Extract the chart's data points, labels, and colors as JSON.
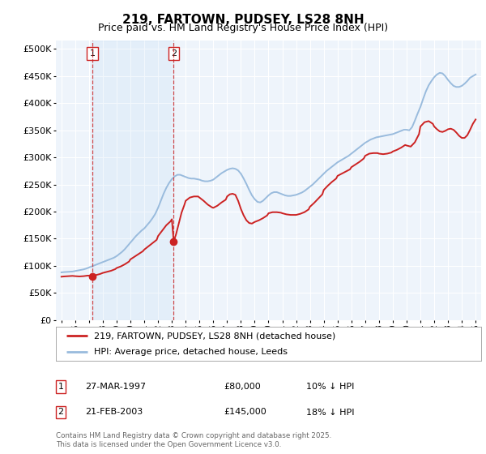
{
  "title": "219, FARTOWN, PUDSEY, LS28 8NH",
  "subtitle": "Price paid vs. HM Land Registry's House Price Index (HPI)",
  "ylabel_values": [
    0,
    50000,
    100000,
    150000,
    200000,
    250000,
    300000,
    350000,
    400000,
    450000,
    500000
  ],
  "xlim_start": 1994.6,
  "xlim_end": 2025.4,
  "ylim": [
    0,
    515000
  ],
  "bg_color": "#ffffff",
  "plot_bg": "#eef4fb",
  "grid_color": "#ffffff",
  "hpi_color": "#99bbdd",
  "price_color": "#cc2222",
  "legend_entry1": "219, FARTOWN, PUDSEY, LS28 8NH (detached house)",
  "legend_entry2": "HPI: Average price, detached house, Leeds",
  "annotation1_label": "1",
  "annotation1_date": "27-MAR-1997",
  "annotation1_price": "£80,000",
  "annotation1_hpi": "10% ↓ HPI",
  "annotation1_year": 1997.23,
  "annotation1_value": 80000,
  "annotation2_label": "2",
  "annotation2_date": "21-FEB-2003",
  "annotation2_price": "£145,000",
  "annotation2_hpi": "18% ↓ HPI",
  "annotation2_year": 2003.13,
  "annotation2_value": 145000,
  "footer": "Contains HM Land Registry data © Crown copyright and database right 2025.\nThis data is licensed under the Open Government Licence v3.0.",
  "hpi_data": [
    [
      1995.0,
      88000
    ],
    [
      1995.2,
      88500
    ],
    [
      1995.4,
      88800
    ],
    [
      1995.6,
      89000
    ],
    [
      1995.8,
      89500
    ],
    [
      1996.0,
      90500
    ],
    [
      1996.2,
      91500
    ],
    [
      1996.4,
      92500
    ],
    [
      1996.6,
      93500
    ],
    [
      1996.8,
      95000
    ],
    [
      1997.0,
      97000
    ],
    [
      1997.2,
      99000
    ],
    [
      1997.4,
      101000
    ],
    [
      1997.6,
      103000
    ],
    [
      1997.8,
      105000
    ],
    [
      1998.0,
      107000
    ],
    [
      1998.2,
      109000
    ],
    [
      1998.4,
      111000
    ],
    [
      1998.6,
      113000
    ],
    [
      1998.8,
      115000
    ],
    [
      1999.0,
      118000
    ],
    [
      1999.2,
      122000
    ],
    [
      1999.4,
      126000
    ],
    [
      1999.6,
      131000
    ],
    [
      1999.8,
      137000
    ],
    [
      2000.0,
      143000
    ],
    [
      2000.2,
      149000
    ],
    [
      2000.4,
      155000
    ],
    [
      2000.6,
      160000
    ],
    [
      2000.8,
      165000
    ],
    [
      2001.0,
      169000
    ],
    [
      2001.2,
      175000
    ],
    [
      2001.4,
      181000
    ],
    [
      2001.6,
      188000
    ],
    [
      2001.8,
      196000
    ],
    [
      2002.0,
      207000
    ],
    [
      2002.2,
      220000
    ],
    [
      2002.4,
      233000
    ],
    [
      2002.6,
      244000
    ],
    [
      2002.8,
      253000
    ],
    [
      2003.0,
      260000
    ],
    [
      2003.2,
      265000
    ],
    [
      2003.4,
      268000
    ],
    [
      2003.6,
      268000
    ],
    [
      2003.8,
      266000
    ],
    [
      2004.0,
      264000
    ],
    [
      2004.2,
      262000
    ],
    [
      2004.4,
      261000
    ],
    [
      2004.6,
      261000
    ],
    [
      2004.8,
      260000
    ],
    [
      2005.0,
      259000
    ],
    [
      2005.2,
      257000
    ],
    [
      2005.4,
      256000
    ],
    [
      2005.6,
      256000
    ],
    [
      2005.8,
      257000
    ],
    [
      2006.0,
      259000
    ],
    [
      2006.2,
      263000
    ],
    [
      2006.4,
      267000
    ],
    [
      2006.6,
      271000
    ],
    [
      2006.8,
      274000
    ],
    [
      2007.0,
      277000
    ],
    [
      2007.2,
      279000
    ],
    [
      2007.4,
      280000
    ],
    [
      2007.6,
      279000
    ],
    [
      2007.8,
      276000
    ],
    [
      2008.0,
      270000
    ],
    [
      2008.2,
      261000
    ],
    [
      2008.4,
      251000
    ],
    [
      2008.6,
      240000
    ],
    [
      2008.8,
      230000
    ],
    [
      2009.0,
      223000
    ],
    [
      2009.2,
      218000
    ],
    [
      2009.4,
      217000
    ],
    [
      2009.6,
      220000
    ],
    [
      2009.8,
      225000
    ],
    [
      2010.0,
      230000
    ],
    [
      2010.2,
      234000
    ],
    [
      2010.4,
      236000
    ],
    [
      2010.6,
      236000
    ],
    [
      2010.8,
      234000
    ],
    [
      2011.0,
      232000
    ],
    [
      2011.2,
      230000
    ],
    [
      2011.4,
      229000
    ],
    [
      2011.6,
      229000
    ],
    [
      2011.8,
      230000
    ],
    [
      2012.0,
      231000
    ],
    [
      2012.2,
      233000
    ],
    [
      2012.4,
      235000
    ],
    [
      2012.6,
      238000
    ],
    [
      2012.8,
      242000
    ],
    [
      2013.0,
      246000
    ],
    [
      2013.2,
      250000
    ],
    [
      2013.4,
      255000
    ],
    [
      2013.6,
      260000
    ],
    [
      2013.8,
      265000
    ],
    [
      2014.0,
      270000
    ],
    [
      2014.2,
      275000
    ],
    [
      2014.4,
      279000
    ],
    [
      2014.6,
      283000
    ],
    [
      2014.8,
      287000
    ],
    [
      2015.0,
      291000
    ],
    [
      2015.2,
      294000
    ],
    [
      2015.4,
      297000
    ],
    [
      2015.6,
      300000
    ],
    [
      2015.8,
      303000
    ],
    [
      2016.0,
      307000
    ],
    [
      2016.2,
      311000
    ],
    [
      2016.4,
      315000
    ],
    [
      2016.6,
      319000
    ],
    [
      2016.8,
      323000
    ],
    [
      2017.0,
      327000
    ],
    [
      2017.2,
      330000
    ],
    [
      2017.4,
      333000
    ],
    [
      2017.6,
      335000
    ],
    [
      2017.8,
      337000
    ],
    [
      2018.0,
      338000
    ],
    [
      2018.2,
      339000
    ],
    [
      2018.4,
      340000
    ],
    [
      2018.6,
      341000
    ],
    [
      2018.8,
      342000
    ],
    [
      2019.0,
      343000
    ],
    [
      2019.2,
      345000
    ],
    [
      2019.4,
      347000
    ],
    [
      2019.6,
      349000
    ],
    [
      2019.8,
      351000
    ],
    [
      2020.0,
      351000
    ],
    [
      2020.2,
      350000
    ],
    [
      2020.4,
      356000
    ],
    [
      2020.6,
      368000
    ],
    [
      2020.8,
      381000
    ],
    [
      2021.0,
      393000
    ],
    [
      2021.2,
      408000
    ],
    [
      2021.4,
      422000
    ],
    [
      2021.6,
      433000
    ],
    [
      2021.8,
      441000
    ],
    [
      2022.0,
      448000
    ],
    [
      2022.2,
      453000
    ],
    [
      2022.4,
      456000
    ],
    [
      2022.6,
      455000
    ],
    [
      2022.8,
      450000
    ],
    [
      2023.0,
      443000
    ],
    [
      2023.2,
      437000
    ],
    [
      2023.4,
      432000
    ],
    [
      2023.6,
      430000
    ],
    [
      2023.8,
      430000
    ],
    [
      2024.0,
      432000
    ],
    [
      2024.2,
      436000
    ],
    [
      2024.4,
      441000
    ],
    [
      2024.6,
      447000
    ],
    [
      2024.8,
      450000
    ],
    [
      2025.0,
      453000
    ]
  ],
  "price_data": [
    [
      1995.0,
      80000
    ],
    [
      1995.2,
      80500
    ],
    [
      1995.5,
      81000
    ],
    [
      1995.8,
      81500
    ],
    [
      1996.0,
      81000
    ],
    [
      1996.3,
      80500
    ],
    [
      1996.6,
      81000
    ],
    [
      1996.9,
      82000
    ],
    [
      1997.0,
      82000
    ],
    [
      1997.23,
      80000
    ],
    [
      1997.5,
      83000
    ],
    [
      1997.8,
      85000
    ],
    [
      1998.0,
      87000
    ],
    [
      1998.3,
      89000
    ],
    [
      1998.6,
      91000
    ],
    [
      1998.9,
      94000
    ],
    [
      1999.0,
      96000
    ],
    [
      1999.3,
      99000
    ],
    [
      1999.6,
      103000
    ],
    [
      1999.9,
      108000
    ],
    [
      2000.0,
      112000
    ],
    [
      2000.3,
      117000
    ],
    [
      2000.6,
      122000
    ],
    [
      2000.9,
      127000
    ],
    [
      2001.0,
      130000
    ],
    [
      2001.3,
      136000
    ],
    [
      2001.6,
      142000
    ],
    [
      2001.9,
      148000
    ],
    [
      2002.0,
      155000
    ],
    [
      2002.3,
      165000
    ],
    [
      2002.6,
      175000
    ],
    [
      2002.9,
      182000
    ],
    [
      2003.0,
      186000
    ],
    [
      2003.13,
      145000
    ],
    [
      2003.3,
      158000
    ],
    [
      2003.5,
      178000
    ],
    [
      2003.7,
      198000
    ],
    [
      2003.9,
      212000
    ],
    [
      2004.0,
      220000
    ],
    [
      2004.3,
      226000
    ],
    [
      2004.6,
      228000
    ],
    [
      2004.9,
      228000
    ],
    [
      2005.0,
      226000
    ],
    [
      2005.3,
      220000
    ],
    [
      2005.6,
      213000
    ],
    [
      2005.9,
      208000
    ],
    [
      2006.0,
      207000
    ],
    [
      2006.3,
      211000
    ],
    [
      2006.6,
      217000
    ],
    [
      2006.9,
      222000
    ],
    [
      2007.0,
      228000
    ],
    [
      2007.2,
      232000
    ],
    [
      2007.4,
      233000
    ],
    [
      2007.6,
      231000
    ],
    [
      2007.8,
      220000
    ],
    [
      2008.0,
      205000
    ],
    [
      2008.2,
      193000
    ],
    [
      2008.4,
      184000
    ],
    [
      2008.6,
      179000
    ],
    [
      2008.8,
      178000
    ],
    [
      2009.0,
      181000
    ],
    [
      2009.3,
      184000
    ],
    [
      2009.6,
      188000
    ],
    [
      2009.9,
      193000
    ],
    [
      2010.0,
      197000
    ],
    [
      2010.3,
      199000
    ],
    [
      2010.6,
      199000
    ],
    [
      2010.9,
      198000
    ],
    [
      2011.0,
      197000
    ],
    [
      2011.3,
      195000
    ],
    [
      2011.6,
      194000
    ],
    [
      2011.9,
      194000
    ],
    [
      2012.0,
      194000
    ],
    [
      2012.3,
      196000
    ],
    [
      2012.6,
      199000
    ],
    [
      2012.9,
      204000
    ],
    [
      2013.0,
      209000
    ],
    [
      2013.3,
      216000
    ],
    [
      2013.6,
      224000
    ],
    [
      2013.9,
      232000
    ],
    [
      2014.0,
      240000
    ],
    [
      2014.3,
      248000
    ],
    [
      2014.6,
      255000
    ],
    [
      2014.9,
      261000
    ],
    [
      2015.0,
      266000
    ],
    [
      2015.3,
      270000
    ],
    [
      2015.6,
      274000
    ],
    [
      2015.9,
      278000
    ],
    [
      2016.0,
      282000
    ],
    [
      2016.3,
      287000
    ],
    [
      2016.6,
      292000
    ],
    [
      2016.9,
      298000
    ],
    [
      2017.0,
      303000
    ],
    [
      2017.3,
      307000
    ],
    [
      2017.6,
      308000
    ],
    [
      2017.9,
      308000
    ],
    [
      2018.0,
      307000
    ],
    [
      2018.3,
      306000
    ],
    [
      2018.6,
      307000
    ],
    [
      2018.9,
      309000
    ],
    [
      2019.0,
      311000
    ],
    [
      2019.3,
      314000
    ],
    [
      2019.6,
      318000
    ],
    [
      2019.9,
      323000
    ],
    [
      2020.0,
      322000
    ],
    [
      2020.3,
      320000
    ],
    [
      2020.6,
      328000
    ],
    [
      2020.9,
      343000
    ],
    [
      2021.0,
      357000
    ],
    [
      2021.3,
      365000
    ],
    [
      2021.6,
      367000
    ],
    [
      2021.9,
      362000
    ],
    [
      2022.0,
      357000
    ],
    [
      2022.2,
      352000
    ],
    [
      2022.4,
      348000
    ],
    [
      2022.6,
      347000
    ],
    [
      2022.8,
      349000
    ],
    [
      2023.0,
      352000
    ],
    [
      2023.2,
      353000
    ],
    [
      2023.4,
      351000
    ],
    [
      2023.6,
      346000
    ],
    [
      2023.8,
      340000
    ],
    [
      2024.0,
      336000
    ],
    [
      2024.2,
      336000
    ],
    [
      2024.4,
      341000
    ],
    [
      2024.6,
      351000
    ],
    [
      2024.8,
      362000
    ],
    [
      2025.0,
      370000
    ]
  ]
}
